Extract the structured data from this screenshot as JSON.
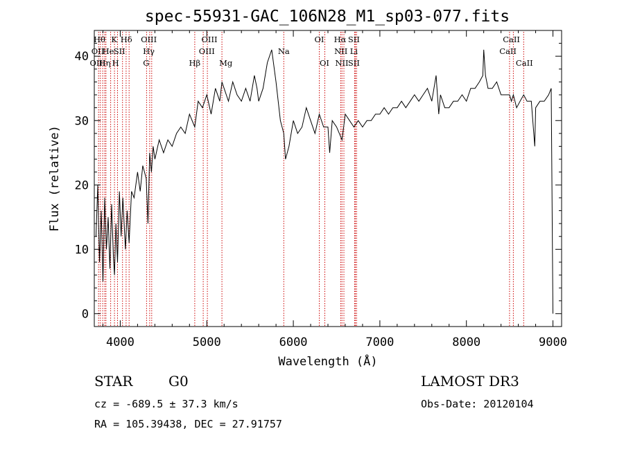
{
  "chart_data": {
    "type": "line",
    "title": "spec-55931-GAC_106N28_M1_sp03-077.fits",
    "xlabel": "Wavelength (Å)",
    "ylabel": "Flux (relative)",
    "xlim": [
      3700,
      9100
    ],
    "ylim": [
      -2,
      44
    ],
    "xticks": [
      4000,
      5000,
      6000,
      7000,
      8000,
      9000
    ],
    "yticks": [
      0,
      10,
      20,
      30,
      40
    ],
    "grid": false,
    "series": [
      {
        "color": "#000000",
        "x": [
          3720,
          3740,
          3760,
          3780,
          3800,
          3820,
          3840,
          3860,
          3880,
          3900,
          3920,
          3933,
          3950,
          3968,
          3990,
          4010,
          4030,
          4060,
          4080,
          4102,
          4130,
          4160,
          4200,
          4230,
          4260,
          4300,
          4320,
          4340,
          4360,
          4380,
          4400,
          4450,
          4500,
          4550,
          4600,
          4650,
          4700,
          4750,
          4800,
          4861,
          4900,
          4950,
          5000,
          5050,
          5100,
          5150,
          5175,
          5200,
          5250,
          5300,
          5350,
          5400,
          5450,
          5500,
          5550,
          5580,
          5600,
          5650,
          5700,
          5750,
          5800,
          5850,
          5890,
          5910,
          5950,
          6000,
          6050,
          6100,
          6150,
          6200,
          6250,
          6300,
          6350,
          6400,
          6420,
          6450,
          6500,
          6563,
          6600,
          6650,
          6700,
          6750,
          6800,
          6850,
          6900,
          6950,
          7000,
          7050,
          7100,
          7150,
          7200,
          7250,
          7300,
          7350,
          7400,
          7450,
          7500,
          7550,
          7600,
          7650,
          7680,
          7700,
          7750,
          7800,
          7850,
          7900,
          7950,
          8000,
          8050,
          8100,
          8150,
          8190,
          8200,
          8220,
          8250,
          8300,
          8350,
          8400,
          8450,
          8498,
          8520,
          8542,
          8580,
          8620,
          8662,
          8700,
          8750,
          8790,
          8800,
          8850,
          8900,
          8950,
          8980,
          9000
        ],
        "y": [
          12,
          20,
          8,
          16,
          5,
          18,
          10,
          15,
          7,
          17,
          9,
          6,
          14,
          8,
          19,
          12,
          18,
          10,
          16,
          11,
          19,
          18,
          22,
          19,
          23,
          21,
          14,
          25,
          22,
          26,
          24,
          27,
          25,
          27,
          26,
          28,
          29,
          28,
          31,
          29,
          33,
          32,
          34,
          31,
          35,
          33,
          36,
          35,
          33,
          36,
          34,
          33,
          35,
          33,
          37,
          35,
          33,
          35,
          39,
          41,
          36,
          30,
          28,
          24,
          26,
          30,
          28,
          29,
          32,
          30,
          28,
          31,
          29,
          29,
          25,
          30,
          29,
          27,
          31,
          30,
          29,
          30,
          29,
          30,
          30,
          31,
          31,
          32,
          31,
          32,
          32,
          33,
          32,
          33,
          34,
          33,
          34,
          35,
          33,
          37,
          31,
          34,
          32,
          32,
          33,
          33,
          34,
          33,
          35,
          35,
          36,
          37,
          41,
          37,
          35,
          35,
          36,
          34,
          34,
          34,
          33,
          34,
          32,
          33,
          34,
          33,
          33,
          26,
          32,
          33,
          33,
          34,
          35,
          0
        ]
      }
    ],
    "lines": [
      {
        "x": 3750,
        "label": "Hθ"
      },
      {
        "x": 3770,
        "label": "OII"
      },
      {
        "x": 3797,
        "label": "OII"
      },
      {
        "x": 3820,
        "label": "Hη"
      },
      {
        "x": 3835,
        "label": "He"
      },
      {
        "x": 3889,
        "label": "H"
      },
      {
        "x": 3933,
        "label": "K"
      },
      {
        "x": 3968,
        "label": "H"
      },
      {
        "x": 4026,
        "label": "He"
      },
      {
        "x": 4068,
        "label": "SII"
      },
      {
        "x": 4102,
        "label": "Hδ"
      },
      {
        "x": 4304,
        "label": "G"
      },
      {
        "x": 4340,
        "label": "Hγ"
      },
      {
        "x": 4363,
        "label": "OIII"
      },
      {
        "x": 4861,
        "label": "Hβ"
      },
      {
        "x": 4959,
        "label": "OIII"
      },
      {
        "x": 5007,
        "label": "OIII"
      },
      {
        "x": 5175,
        "label": "Mg"
      },
      {
        "x": 5890,
        "label": "Na"
      },
      {
        "x": 6300,
        "label": "OI"
      },
      {
        "x": 6364,
        "label": "OI"
      },
      {
        "x": 6548,
        "label": "NII"
      },
      {
        "x": 6563,
        "label": "Hα"
      },
      {
        "x": 6584,
        "label": "NII"
      },
      {
        "x": 6708,
        "label": "Li"
      },
      {
        "x": 6717,
        "label": "SII"
      },
      {
        "x": 6731,
        "label": "SII"
      },
      {
        "x": 8498,
        "label": "CaII"
      },
      {
        "x": 8542,
        "label": "CaII"
      },
      {
        "x": 8662,
        "label": "CaII"
      }
    ],
    "line_labels": [
      {
        "text": "Hθ",
        "x": 3760,
        "row": 1
      },
      {
        "text": "K",
        "x": 3930,
        "row": 1
      },
      {
        "text": "Hδ",
        "x": 4070,
        "row": 1
      },
      {
        "text": "OIII",
        "x": 4330,
        "row": 1
      },
      {
        "text": "OIII",
        "x": 5030,
        "row": 1
      },
      {
        "text": "OI",
        "x": 6300,
        "row": 1
      },
      {
        "text": "Hα",
        "x": 6540,
        "row": 1
      },
      {
        "text": "SII",
        "x": 6700,
        "row": 1
      },
      {
        "text": "CaII",
        "x": 8520,
        "row": 1
      },
      {
        "text": "OII",
        "x": 3740,
        "row": 2
      },
      {
        "text": "He",
        "x": 3860,
        "row": 2
      },
      {
        "text": "SII",
        "x": 3990,
        "row": 2
      },
      {
        "text": "Hγ",
        "x": 4330,
        "row": 2
      },
      {
        "text": "OIII",
        "x": 5000,
        "row": 2
      },
      {
        "text": "Na",
        "x": 5890,
        "row": 2
      },
      {
        "text": "NII",
        "x": 6550,
        "row": 2
      },
      {
        "text": "Li",
        "x": 6700,
        "row": 2
      },
      {
        "text": "CaII",
        "x": 8480,
        "row": 2
      },
      {
        "text": "OIII",
        "x": 3740,
        "row": 3
      },
      {
        "text": "Hη",
        "x": 3820,
        "row": 3
      },
      {
        "text": "H",
        "x": 3945,
        "row": 3
      },
      {
        "text": "G",
        "x": 4300,
        "row": 3
      },
      {
        "text": "Hβ",
        "x": 4860,
        "row": 3
      },
      {
        "text": "Mg",
        "x": 5220,
        "row": 3
      },
      {
        "text": "OI",
        "x": 6360,
        "row": 3
      },
      {
        "text": "NII",
        "x": 6560,
        "row": 3
      },
      {
        "text": "SII",
        "x": 6700,
        "row": 3
      },
      {
        "text": "CaII",
        "x": 8670,
        "row": 3
      }
    ],
    "line_color": "#cc0000"
  },
  "info": {
    "object_class": "STAR",
    "subclass": "G0",
    "survey": "LAMOST DR3",
    "redshift": "cz = -689.5 ± 37.3 km/s",
    "obs_date": "Obs-Date: 20120104",
    "coords": "RA = 105.39438, DEC =  27.91757"
  }
}
